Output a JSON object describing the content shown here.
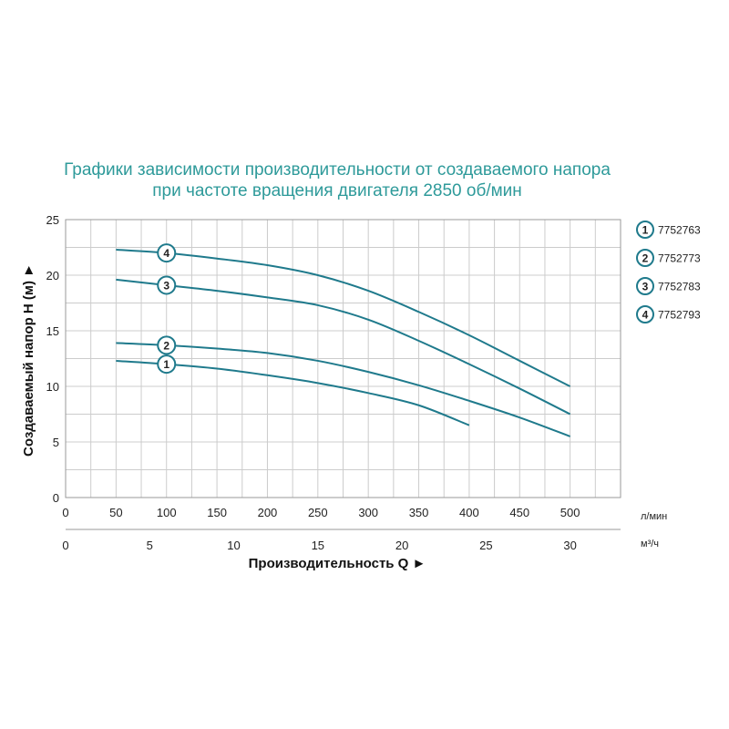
{
  "chart_data": {
    "type": "line",
    "title_lines": [
      "Графики зависимости производительности от создаваемого напора",
      "при частоте вращения двигателя 2850 об/мин"
    ],
    "ylabel": "Создаваемый напор H (м) ►",
    "xlabel": "Производительность Q ►",
    "x_unit_primary": "л/мин",
    "x_unit_secondary": "м³/ч",
    "xlim": [
      0,
      550
    ],
    "ylim": [
      0,
      25
    ],
    "x_ticks_primary": [
      0,
      50,
      100,
      150,
      200,
      250,
      300,
      350,
      400,
      450,
      500
    ],
    "x_ticks_secondary": [
      0,
      5,
      10,
      15,
      20,
      25,
      30
    ],
    "y_ticks": [
      0,
      5,
      10,
      15,
      20,
      25
    ],
    "grid": true,
    "legend_position": "right",
    "line_color": "#1f7a8c",
    "grid_color": "#cccccc",
    "series": [
      {
        "name": "7752763",
        "badge": "1",
        "x": [
          50,
          100,
          150,
          200,
          250,
          300,
          350,
          400
        ],
        "y": [
          12.3,
          12.0,
          11.6,
          11.0,
          10.3,
          9.4,
          8.3,
          6.5
        ],
        "badge_at": 100
      },
      {
        "name": "7752773",
        "badge": "2",
        "x": [
          50,
          100,
          150,
          200,
          250,
          300,
          350,
          400,
          450,
          500
        ],
        "y": [
          13.9,
          13.7,
          13.4,
          13.0,
          12.3,
          11.3,
          10.1,
          8.7,
          7.2,
          5.5
        ],
        "badge_at": 100
      },
      {
        "name": "7752783",
        "badge": "3",
        "x": [
          50,
          100,
          150,
          200,
          250,
          300,
          350,
          400,
          450,
          500
        ],
        "y": [
          19.6,
          19.1,
          18.6,
          18.0,
          17.3,
          16.0,
          14.1,
          12.0,
          9.8,
          7.5
        ],
        "badge_at": 100
      },
      {
        "name": "7752793",
        "badge": "4",
        "x": [
          50,
          100,
          150,
          200,
          250,
          300,
          350,
          400,
          450,
          500
        ],
        "y": [
          22.3,
          22.0,
          21.5,
          20.9,
          20.0,
          18.6,
          16.7,
          14.6,
          12.3,
          10.0
        ],
        "badge_at": 100
      }
    ]
  }
}
